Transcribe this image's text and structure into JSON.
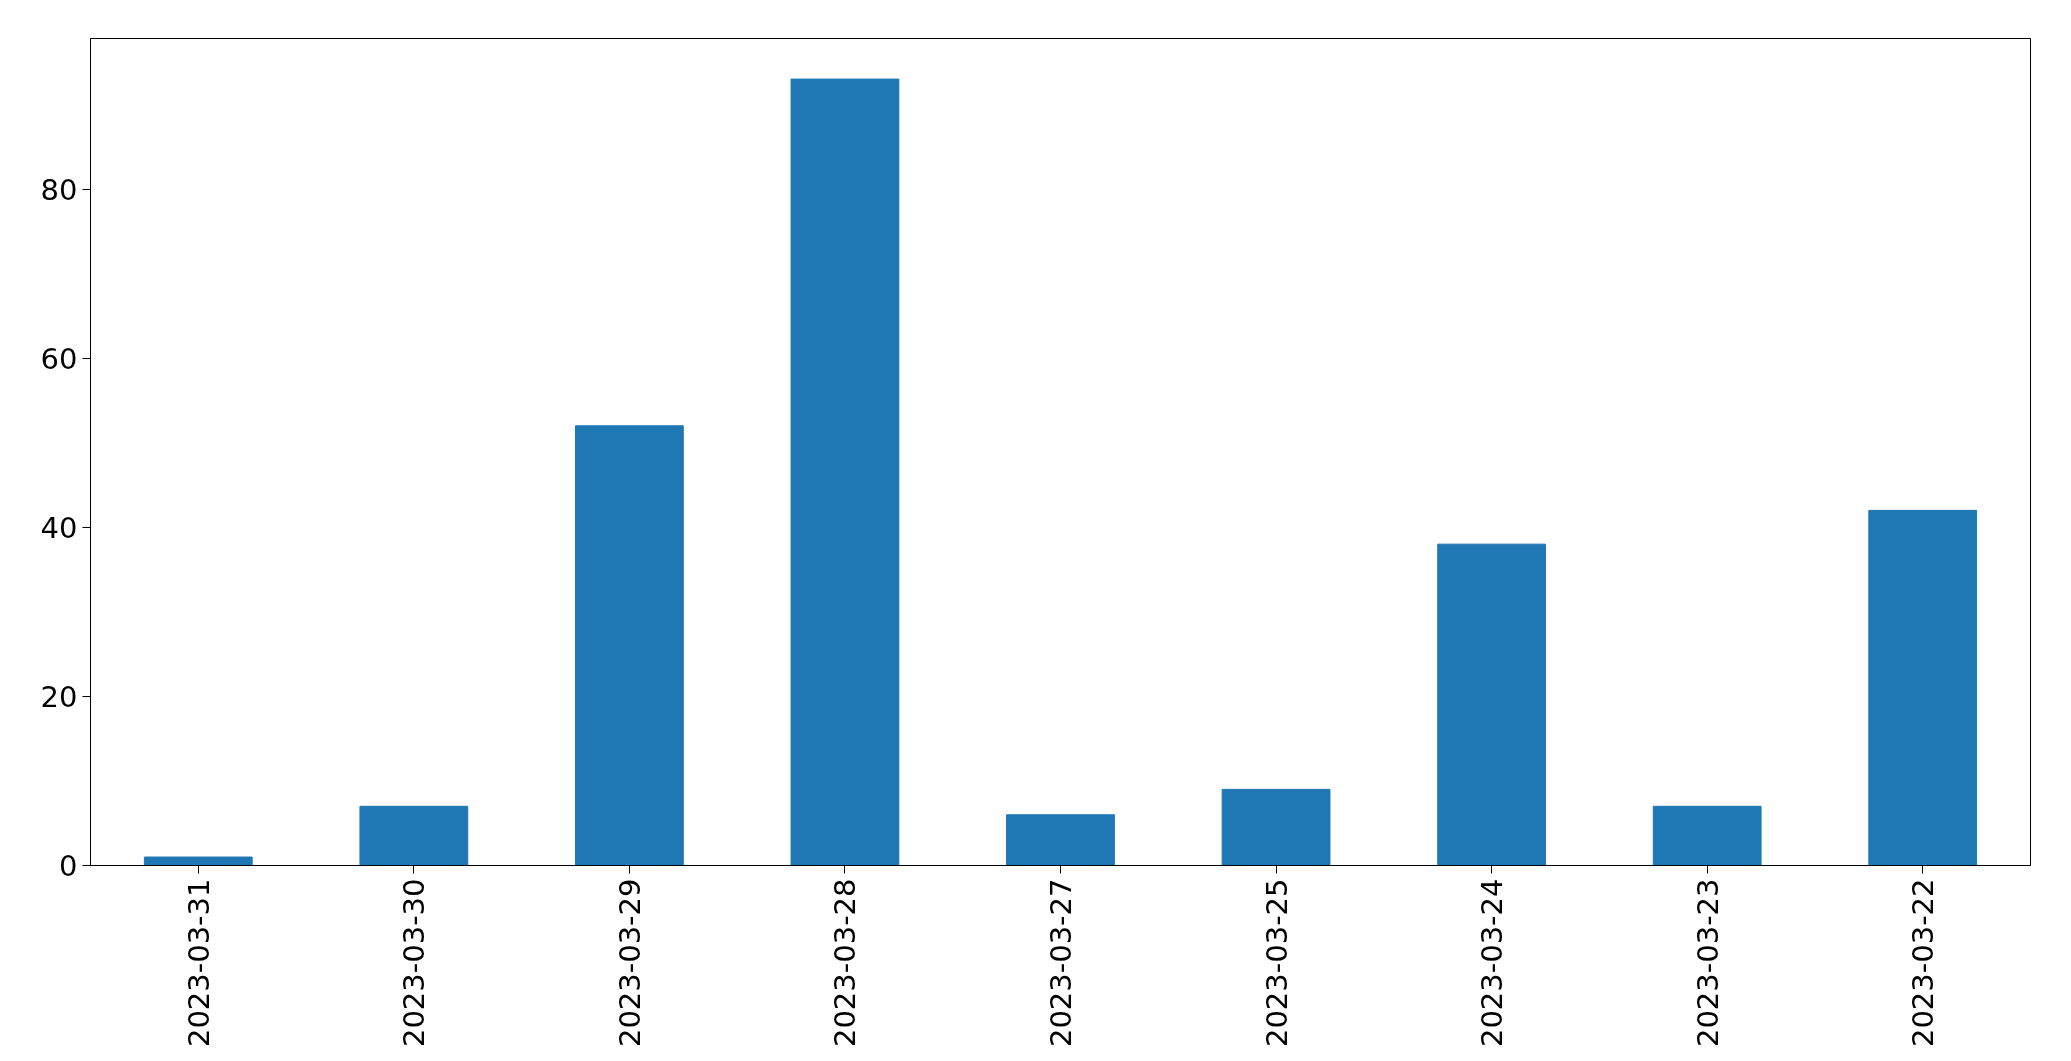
{
  "chart_data": {
    "type": "bar",
    "categories": [
      "2023-03-31",
      "2023-03-30",
      "2023-03-29",
      "2023-03-28",
      "2023-03-27",
      "2023-03-25",
      "2023-03-24",
      "2023-03-23",
      "2023-03-22"
    ],
    "values": [
      1,
      7,
      52,
      93,
      6,
      9,
      38,
      7,
      42
    ],
    "color": "#1f77b4",
    "ylim": [
      0,
      97.8
    ],
    "yticks": [
      0,
      20,
      40,
      60,
      80
    ],
    "grid": false
  }
}
